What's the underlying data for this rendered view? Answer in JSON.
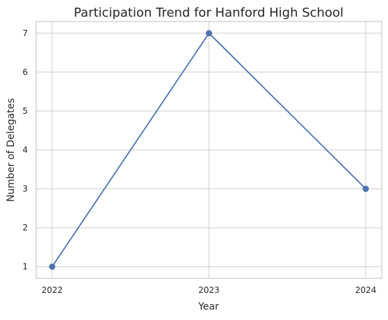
{
  "chart_data": {
    "type": "line",
    "title": "Participation Trend for Hanford High School",
    "xlabel": "Year",
    "ylabel": "Number of Delegates",
    "categories": [
      "2022",
      "2023",
      "2024"
    ],
    "series": [
      {
        "values": [
          1,
          7,
          3
        ]
      }
    ],
    "yticks": [
      "1",
      "2",
      "3",
      "4",
      "5",
      "6",
      "7"
    ],
    "ylim": [
      0.7,
      7.3
    ],
    "grid": true,
    "line_color": "#4c72b0",
    "marker": "circle"
  }
}
